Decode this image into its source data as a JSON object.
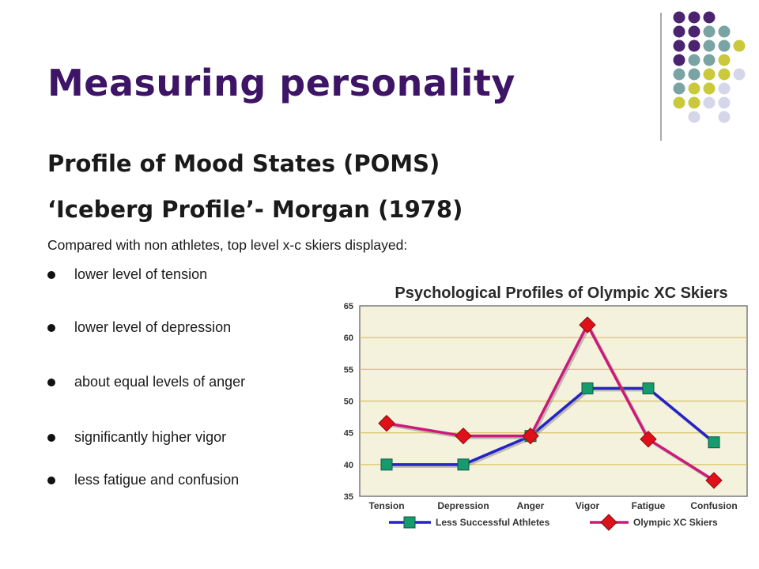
{
  "slide": {
    "title": "Measuring personality",
    "subtitle1": "Profile of Mood States (POMS)",
    "subtitle2": "‘Iceberg Profile’- Morgan (1978)",
    "intro": "Compared with non athletes, top level x-c skiers displayed:",
    "bullets": [
      "lower level of tension",
      "lower level of depression",
      "about equal levels of anger",
      "significantly higher vigor",
      "less fatigue and confusion"
    ]
  },
  "colors": {
    "title": "#3e1466",
    "purple_dot": "#4b2370",
    "teal_dot": "#7aa3a3",
    "olive_dot": "#c9c93b",
    "lavender_dot": "#d6d6ea",
    "series_blue": "#2323c8",
    "series_magenta": "#cc1a7a",
    "marker_green": "#169a6e",
    "marker_red": "#e0101a",
    "plot_bg": "#f4f1dc",
    "gridline": "#d8c25a"
  },
  "chart_data": {
    "type": "line",
    "title": "Psychological Profiles of Olympic XC Skiers",
    "categories": [
      "Tension",
      "Depression",
      "Anger",
      "Vigor",
      "Fatigue",
      "Confusion"
    ],
    "ylim": [
      35,
      65
    ],
    "yticks": [
      35,
      40,
      45,
      50,
      55,
      60,
      65
    ],
    "grid": true,
    "legend_position": "bottom",
    "series": [
      {
        "name": "Less Successful Athletes",
        "values": [
          40,
          40,
          44.5,
          52,
          52,
          43.5
        ]
      },
      {
        "name": "Olympic XC Skiers",
        "values": [
          46.5,
          44.5,
          44.5,
          62,
          44,
          37.5
        ]
      }
    ]
  }
}
